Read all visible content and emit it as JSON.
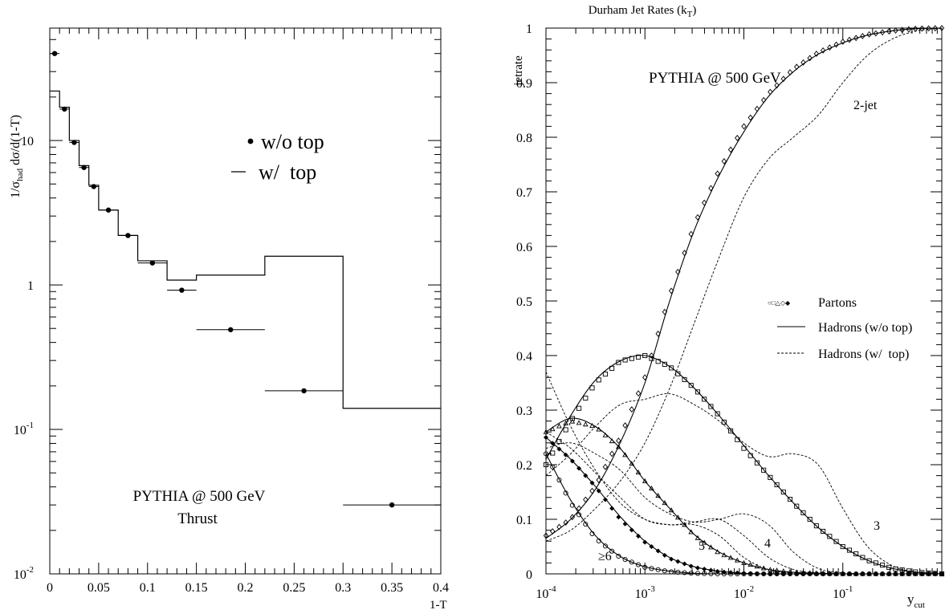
{
  "chart_data": [
    {
      "type": "scatter",
      "title": "",
      "xlabel": "1-T",
      "ylabel": {
        "main": "1/σ",
        "sub": "had",
        "rest": " dσ/d(1-T)"
      },
      "xlim": [
        0,
        0.4
      ],
      "ylim": [
        0.01,
        60
      ],
      "yscale": "log",
      "x_ticks": [
        "0",
        "0.05",
        "0.1",
        "0.15",
        "0.2",
        "0.25",
        "0.3",
        "0.35",
        "0.4"
      ],
      "y_ticks": [
        {
          "base": "10",
          "exp": "-2"
        },
        {
          "base": "10",
          "exp": "-1"
        },
        {
          "base": "1",
          "exp": ""
        },
        {
          "base": "10",
          "exp": ""
        }
      ],
      "annotations": [
        "PYTHIA @ 500 GeV",
        "Thrust"
      ],
      "legend": {
        "placement": "top-right",
        "entries": [
          "w/o top",
          "w/  top"
        ]
      },
      "series": [
        {
          "name": "w/o top",
          "style": "points-with-xerr",
          "points": [
            {
              "x": 0.005,
              "y": 40,
              "xlo": 0.0,
              "xhi": 0.01
            },
            {
              "x": 0.015,
              "y": 16.5,
              "xlo": 0.01,
              "xhi": 0.02
            },
            {
              "x": 0.025,
              "y": 9.7,
              "xlo": 0.02,
              "xhi": 0.03
            },
            {
              "x": 0.035,
              "y": 6.5,
              "xlo": 0.03,
              "xhi": 0.04
            },
            {
              "x": 0.045,
              "y": 4.8,
              "xlo": 0.04,
              "xhi": 0.05
            },
            {
              "x": 0.06,
              "y": 3.3,
              "xlo": 0.05,
              "xhi": 0.07
            },
            {
              "x": 0.08,
              "y": 2.2,
              "xlo": 0.07,
              "xhi": 0.09
            },
            {
              "x": 0.105,
              "y": 1.42,
              "xlo": 0.09,
              "xhi": 0.12
            },
            {
              "x": 0.135,
              "y": 0.92,
              "xlo": 0.12,
              "xhi": 0.15
            },
            {
              "x": 0.185,
              "y": 0.49,
              "xlo": 0.15,
              "xhi": 0.22
            },
            {
              "x": 0.26,
              "y": 0.185,
              "xlo": 0.22,
              "xhi": 0.3
            },
            {
              "x": 0.35,
              "y": 0.03,
              "xlo": 0.3,
              "xhi": 0.4
            }
          ]
        },
        {
          "name": "w/  top",
          "style": "histogram",
          "edges": [
            0,
            0.01,
            0.02,
            0.03,
            0.04,
            0.05,
            0.07,
            0.09,
            0.12,
            0.15,
            0.22,
            0.3,
            0.4
          ],
          "values": [
            22,
            17,
            10,
            6.7,
            4.9,
            3.3,
            2.2,
            1.47,
            1.08,
            1.17,
            1.58,
            0.14
          ]
        }
      ]
    },
    {
      "type": "line",
      "title": "Durham Jet Rates (k",
      "title_sub": "T",
      "title_end": ")",
      "xlabel": "y",
      "xlabel_sub": "cut",
      "ylabel": "jetrate",
      "xscale": "log",
      "xlim": [
        0.0001,
        1
      ],
      "ylim": [
        0,
        1
      ],
      "x_ticks": [
        {
          "base": "10",
          "exp": "-4"
        },
        {
          "base": "10",
          "exp": "-3"
        },
        {
          "base": "10",
          "exp": "-2"
        },
        {
          "base": "10",
          "exp": "-1"
        }
      ],
      "y_ticks": [
        "0",
        "0.1",
        "0.2",
        "0.3",
        "0.4",
        "0.5",
        "0.6",
        "0.7",
        "0.8",
        "0.9",
        "1"
      ],
      "annotations": [
        "PYTHIA @ 500 GeV",
        "2-jet",
        "3",
        "4",
        "5",
        "≥6"
      ],
      "legend": {
        "placement": "center-right",
        "entries": [
          "Partons",
          "Hadrons (w/o top)",
          "Hadrons (w/  top)"
        ],
        "marker_glyphs": "○□△◇◆"
      },
      "log10x": [
        -4.0,
        -3.75,
        -3.5,
        -3.25,
        -3.0,
        -2.75,
        -2.5,
        -2.25,
        -2.0,
        -1.75,
        -1.5,
        -1.25,
        -1.0,
        -0.75,
        -0.5,
        -0.25,
        0.0
      ],
      "series": [
        {
          "name": "Partons",
          "jets": "2-jet",
          "marker": "diamond",
          "values": [
            0.07,
            0.1,
            0.16,
            0.25,
            0.36,
            0.51,
            0.64,
            0.74,
            0.82,
            0.88,
            0.925,
            0.955,
            0.975,
            0.988,
            0.995,
            0.999,
            1.0
          ]
        },
        {
          "name": "Partons",
          "jets": "3-jet",
          "marker": "square",
          "values": [
            0.2,
            0.28,
            0.35,
            0.39,
            0.4,
            0.38,
            0.34,
            0.29,
            0.23,
            0.18,
            0.13,
            0.085,
            0.05,
            0.025,
            0.01,
            0.003,
            0.0
          ]
        },
        {
          "name": "Partons",
          "jets": "4-jet",
          "marker": "triangle",
          "values": [
            0.26,
            0.28,
            0.27,
            0.23,
            0.17,
            0.12,
            0.07,
            0.038,
            0.02,
            0.008,
            0.003,
            0.001,
            0.0,
            0.0,
            0.0,
            0.0,
            0.0
          ]
        },
        {
          "name": "Partons",
          "jets": "5-jet",
          "marker": "filled-diamond",
          "values": [
            0.25,
            0.21,
            0.16,
            0.1,
            0.058,
            0.028,
            0.012,
            0.004,
            0.001,
            0.0,
            0.0,
            0.0,
            0.0,
            0.0,
            0.0,
            0.0,
            0.0
          ]
        },
        {
          "name": "Partons",
          "jets": "≥6-jet",
          "marker": "circle",
          "values": [
            0.22,
            0.13,
            0.065,
            0.03,
            0.012,
            0.004,
            0.001,
            0.0,
            0.0,
            0.0,
            0.0,
            0.0,
            0.0,
            0.0,
            0.0,
            0.0,
            0.0
          ]
        },
        {
          "name": "Hadrons (w/o top)",
          "jets": "2-jet",
          "values": [
            0.065,
            0.1,
            0.155,
            0.24,
            0.35,
            0.5,
            0.63,
            0.73,
            0.81,
            0.875,
            0.92,
            0.952,
            0.973,
            0.987,
            0.995,
            0.999,
            1.0
          ]
        },
        {
          "name": "Hadrons (w/o top)",
          "jets": "3-jet",
          "values": [
            0.21,
            0.29,
            0.355,
            0.39,
            0.4,
            0.38,
            0.34,
            0.29,
            0.235,
            0.18,
            0.13,
            0.085,
            0.05,
            0.025,
            0.01,
            0.003,
            0.0
          ]
        },
        {
          "name": "Hadrons (w/o top)",
          "jets": "4-jet",
          "values": [
            0.26,
            0.285,
            0.27,
            0.23,
            0.17,
            0.12,
            0.072,
            0.04,
            0.02,
            0.008,
            0.003,
            0.001,
            0.0,
            0.0,
            0.0,
            0.0,
            0.0
          ]
        },
        {
          "name": "Hadrons (w/o top)",
          "jets": "5-jet",
          "values": [
            0.25,
            0.21,
            0.16,
            0.105,
            0.06,
            0.03,
            0.013,
            0.005,
            0.001,
            0.0,
            0.0,
            0.0,
            0.0,
            0.0,
            0.0,
            0.0,
            0.0
          ]
        },
        {
          "name": "Hadrons (w/o top)",
          "jets": "≥6-jet",
          "values": [
            0.22,
            0.135,
            0.07,
            0.032,
            0.013,
            0.005,
            0.001,
            0.0,
            0.0,
            0.0,
            0.0,
            0.0,
            0.0,
            0.0,
            0.0,
            0.0,
            0.0
          ]
        },
        {
          "name": "Hadrons (w/  top)",
          "jets": "2-jet",
          "values": [
            0.06,
            0.08,
            0.12,
            0.17,
            0.24,
            0.34,
            0.46,
            0.58,
            0.69,
            0.76,
            0.8,
            0.84,
            0.9,
            0.95,
            0.98,
            0.995,
            1.0
          ]
        },
        {
          "name": "Hadrons (w/  top)",
          "jets": "3-jet",
          "values": [
            0.18,
            0.22,
            0.27,
            0.31,
            0.32,
            0.33,
            0.31,
            0.28,
            0.24,
            0.215,
            0.22,
            0.2,
            0.12,
            0.05,
            0.015,
            0.003,
            0.0
          ]
        },
        {
          "name": "Hadrons (w/  top)",
          "jets": "4-jet",
          "values": [
            0.23,
            0.24,
            0.22,
            0.19,
            0.14,
            0.11,
            0.095,
            0.1,
            0.11,
            0.09,
            0.04,
            0.01,
            0.002,
            0.0,
            0.0,
            0.0,
            0.0
          ]
        },
        {
          "name": "Hadrons (w/  top)",
          "jets": "5-jet",
          "values": [
            0.26,
            0.23,
            0.185,
            0.14,
            0.1,
            0.09,
            0.095,
            0.1,
            0.07,
            0.03,
            0.008,
            0.002,
            0.0,
            0.0,
            0.0,
            0.0,
            0.0
          ]
        },
        {
          "name": "Hadrons (w/  top)",
          "jets": "≥6-jet",
          "values": [
            0.37,
            0.27,
            0.19,
            0.13,
            0.1,
            0.09,
            0.09,
            0.07,
            0.03,
            0.008,
            0.002,
            0.0,
            0.0,
            0.0,
            0.0,
            0.0,
            0.0
          ]
        }
      ]
    }
  ]
}
